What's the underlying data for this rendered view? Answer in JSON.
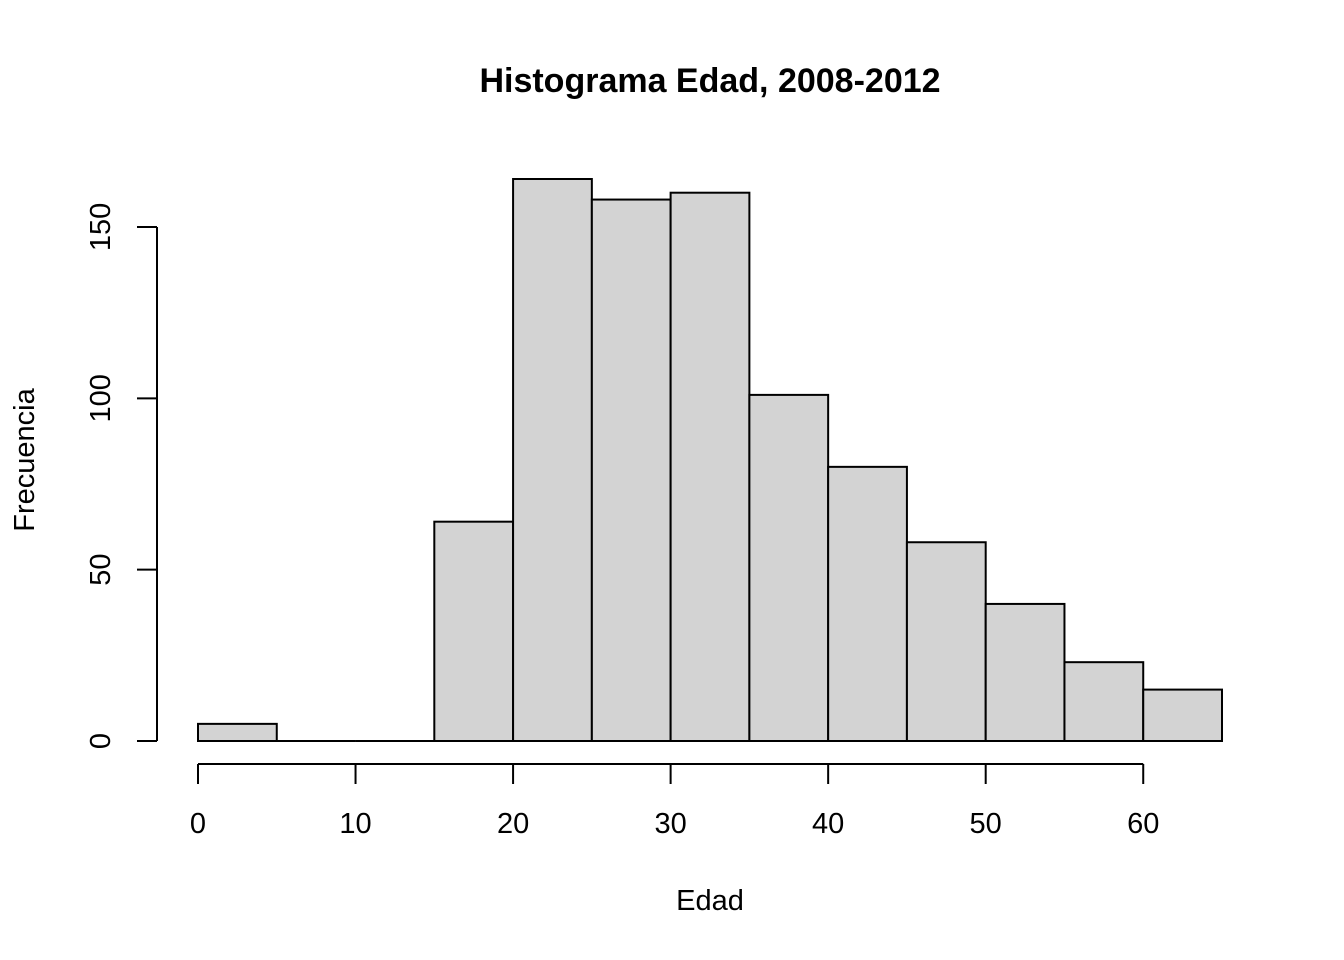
{
  "chart_data": {
    "type": "bar",
    "title": "Histograma Edad, 2008-2012",
    "xlabel": "Edad",
    "ylabel": "Frecuencia",
    "bins": [
      {
        "from": 0,
        "to": 5,
        "value": 5
      },
      {
        "from": 5,
        "to": 10,
        "value": 0
      },
      {
        "from": 10,
        "to": 15,
        "value": 0
      },
      {
        "from": 15,
        "to": 20,
        "value": 64
      },
      {
        "from": 20,
        "to": 25,
        "value": 164
      },
      {
        "from": 25,
        "to": 30,
        "value": 158
      },
      {
        "from": 30,
        "to": 35,
        "value": 160
      },
      {
        "from": 35,
        "to": 40,
        "value": 101
      },
      {
        "from": 40,
        "to": 45,
        "value": 80
      },
      {
        "from": 45,
        "to": 50,
        "value": 58
      },
      {
        "from": 50,
        "to": 55,
        "value": 40
      },
      {
        "from": 55,
        "to": 60,
        "value": 23
      },
      {
        "from": 60,
        "to": 65,
        "value": 15
      }
    ],
    "x_ticks": [
      0,
      10,
      20,
      30,
      40,
      50,
      60
    ],
    "y_ticks": [
      0,
      50,
      100,
      150
    ],
    "xlim": [
      0,
      65
    ],
    "ylim": [
      0,
      164
    ],
    "grid": false,
    "bar_color": "#d3d3d3",
    "border_color": "#000000"
  }
}
